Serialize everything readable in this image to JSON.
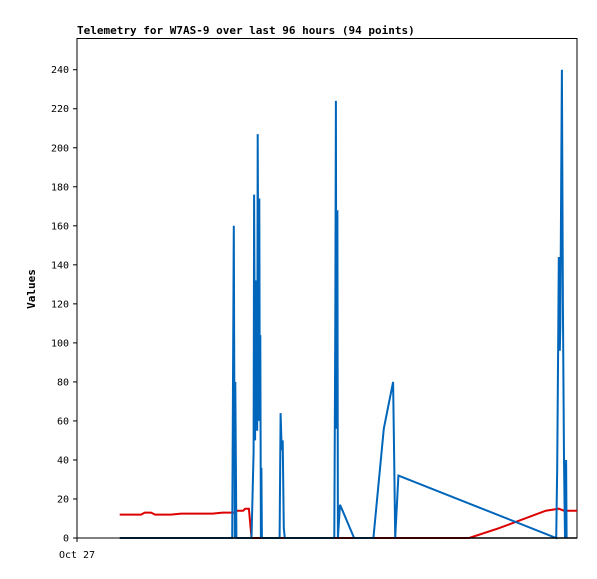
{
  "chart_data": {
    "type": "line",
    "title": "Telemetry for W7AS-9 over last 96 hours (94 points)",
    "ylabel": "Values",
    "xlabel": "",
    "ylim": [
      0,
      256
    ],
    "xlim": [
      0,
      96
    ],
    "y_ticks": [
      0,
      20,
      40,
      60,
      80,
      100,
      120,
      140,
      160,
      180,
      200,
      220,
      240
    ],
    "x_ticks": [
      {
        "x": 0,
        "label": "Oct 27"
      }
    ],
    "grid": false,
    "series": [
      {
        "color": "#dd0000",
        "points": [
          [
            8.2,
            12
          ],
          [
            12.3,
            12
          ],
          [
            13.0,
            13
          ],
          [
            14.2,
            13
          ],
          [
            15.0,
            12
          ],
          [
            18.0,
            12
          ],
          [
            20.0,
            12.5
          ],
          [
            26.0,
            12.5
          ],
          [
            28.0,
            13
          ],
          [
            30.3,
            13
          ],
          [
            30.8,
            14
          ],
          [
            31.9,
            14
          ],
          [
            32.3,
            15
          ],
          [
            33.0,
            15
          ],
          [
            33.5,
            0
          ],
          [
            58.0,
            0
          ],
          [
            75.3,
            0
          ],
          [
            81.0,
            5
          ],
          [
            90.0,
            14
          ],
          [
            92.5,
            15
          ],
          [
            93.5,
            14
          ],
          [
            96.0,
            14
          ]
        ]
      },
      {
        "color": "#0066bb",
        "points": [
          [
            8.2,
            0
          ],
          [
            29.8,
            0
          ],
          [
            30.1,
            160
          ],
          [
            30.3,
            0
          ],
          [
            30.4,
            80
          ],
          [
            30.6,
            0
          ],
          [
            33.5,
            0
          ],
          [
            33.9,
            44
          ],
          [
            34.0,
            176
          ],
          [
            34.2,
            50
          ],
          [
            34.3,
            132
          ],
          [
            34.5,
            96
          ],
          [
            34.6,
            55
          ],
          [
            34.7,
            207
          ],
          [
            34.9,
            60
          ],
          [
            35.0,
            174
          ],
          [
            35.1,
            60
          ],
          [
            35.2,
            104
          ],
          [
            35.3,
            0
          ],
          [
            35.4,
            36
          ],
          [
            35.5,
            0
          ],
          [
            38.9,
            0
          ],
          [
            39.1,
            64
          ],
          [
            39.3,
            45
          ],
          [
            39.5,
            50
          ],
          [
            39.7,
            5
          ],
          [
            39.9,
            0
          ],
          [
            49.4,
            0
          ],
          [
            49.6,
            112
          ],
          [
            49.7,
            224
          ],
          [
            49.8,
            56
          ],
          [
            50.0,
            168
          ],
          [
            50.1,
            0
          ],
          [
            50.5,
            17
          ],
          [
            51.0,
            14
          ],
          [
            53.2,
            0
          ],
          [
            56.9,
            0
          ],
          [
            58.9,
            56
          ],
          [
            60.7,
            80
          ],
          [
            60.9,
            40
          ],
          [
            61.1,
            0
          ],
          [
            61.7,
            32
          ],
          [
            92.0,
            0
          ],
          [
            92.2,
            36
          ],
          [
            92.4,
            108
          ],
          [
            92.5,
            144
          ],
          [
            92.7,
            96
          ],
          [
            92.8,
            108
          ],
          [
            93.0,
            200
          ],
          [
            93.1,
            240
          ],
          [
            93.3,
            120
          ],
          [
            93.5,
            40
          ],
          [
            93.7,
            0
          ],
          [
            93.9,
            40
          ],
          [
            94.0,
            0
          ]
        ]
      },
      {
        "color": "#000000",
        "points": [
          [
            8.2,
            0
          ],
          [
            96.0,
            0
          ]
        ]
      }
    ]
  }
}
